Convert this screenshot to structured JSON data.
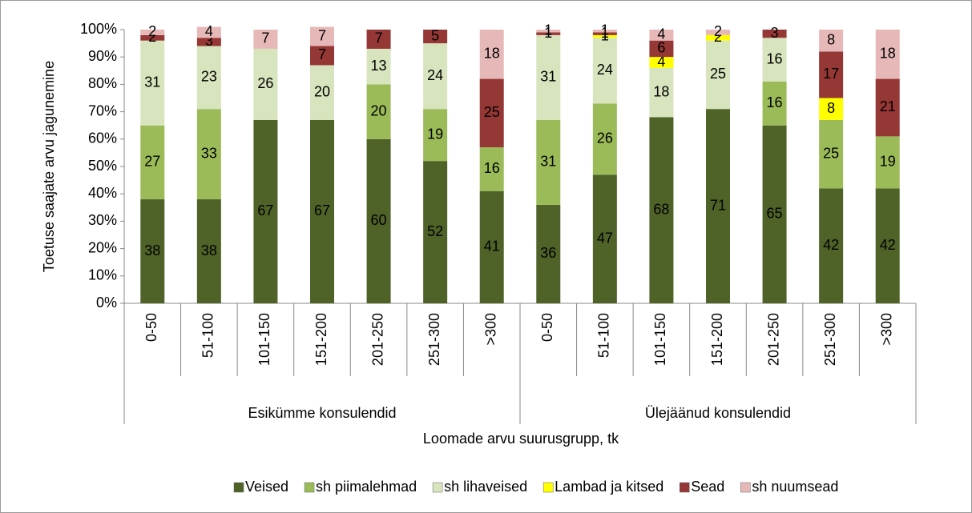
{
  "chart_data": {
    "type": "stacked_bar",
    "y_label": "Toetuse saajate arvu jagunemine",
    "x_label": "Loomade arvu suurusgrupp, tk",
    "groups": [
      {
        "name": "Esikümme konsulendid",
        "categories": [
          "0-50",
          "51-100",
          "101-150",
          "151-200",
          "201-250",
          "251-300",
          ">300"
        ]
      },
      {
        "name": "Ülejäänud konsulendid",
        "categories": [
          "0-50",
          "51-100",
          "101-150",
          "151-200",
          "201-250",
          "251-300",
          ">300"
        ]
      }
    ],
    "series": [
      {
        "name": "Veised",
        "color": "#4f6228",
        "values": [
          38,
          38,
          67,
          67,
          60,
          52,
          41,
          36,
          47,
          68,
          71,
          65,
          42,
          42
        ]
      },
      {
        "name": "sh piimalehmad",
        "color": "#9bbb59",
        "values": [
          27,
          33,
          null,
          null,
          20,
          19,
          16,
          31,
          26,
          null,
          null,
          16,
          25,
          19
        ]
      },
      {
        "name": "sh lihaveised",
        "color": "#d7e4bd",
        "values": [
          31,
          23,
          26,
          20,
          13,
          24,
          null,
          31,
          24,
          18,
          25,
          16,
          null,
          null
        ]
      },
      {
        "name": "Lambad ja kitsed",
        "color": "#ffff00",
        "values": [
          null,
          null,
          null,
          null,
          null,
          null,
          null,
          null,
          1,
          4,
          2,
          null,
          8,
          null
        ]
      },
      {
        "name": "Sead",
        "color": "#953735",
        "values": [
          2,
          3,
          null,
          7,
          7,
          5,
          25,
          1,
          1,
          6,
          null,
          3,
          17,
          21
        ]
      },
      {
        "name": "sh nuumsead",
        "color": "#e6b9b8",
        "values": [
          2,
          4,
          7,
          7,
          null,
          null,
          18,
          1,
          1,
          4,
          2,
          null,
          8,
          18
        ]
      }
    ],
    "ylim": [
      0,
      100
    ],
    "yticks": [
      {
        "value": 0,
        "label": "0%"
      },
      {
        "value": 10,
        "label": "10%"
      },
      {
        "value": 20,
        "label": "20%"
      },
      {
        "value": 30,
        "label": "30%"
      },
      {
        "value": 40,
        "label": "40%"
      },
      {
        "value": 50,
        "label": "50%"
      },
      {
        "value": 60,
        "label": "60%"
      },
      {
        "value": 70,
        "label": "70%"
      },
      {
        "value": 80,
        "label": "80%"
      },
      {
        "value": 90,
        "label": "90%"
      },
      {
        "value": 100,
        "label": "100%"
      }
    ],
    "legend": "bottom"
  }
}
